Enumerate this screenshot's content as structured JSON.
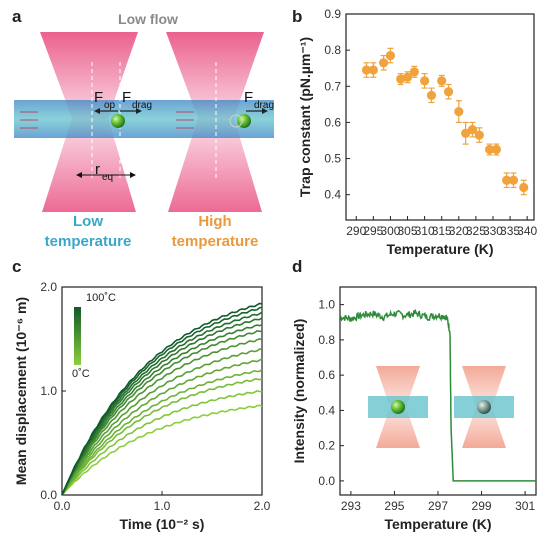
{
  "panel_a": {
    "letter": "a",
    "title": "Low flow",
    "force_op": "F",
    "force_op_sub": "op",
    "force_drag": "F",
    "force_drag_sub": "drag",
    "force_drag_right": "F",
    "force_drag_right_sub": "drag",
    "req": "r",
    "req_sub": "eq",
    "left_caption_1": "Low",
    "left_caption_2": "temperature",
    "right_caption_1": "High",
    "right_caption_2": "temperature",
    "colors": {
      "low": "#3aa6c8",
      "high": "#e89a3c",
      "beam": "#e8457a",
      "channel": "#4fb3c9",
      "bead": "#5dbb2e"
    }
  },
  "panel_b_letter": "b",
  "panel_c_letter": "c",
  "panel_d_letter": "d",
  "chart_data": [
    {
      "panel": "b",
      "type": "scatter",
      "xlabel": "Temperature (K)",
      "ylabel": "Trap constant (pN.µm⁻¹)",
      "xlim": [
        287,
        342
      ],
      "ylim": [
        0.33,
        0.9
      ],
      "xticks": [
        "290",
        "295",
        "300",
        "305",
        "310",
        "315",
        "320",
        "325",
        "330",
        "335",
        "340"
      ],
      "yticks": [
        "0.4",
        "0.5",
        "0.6",
        "0.7",
        "0.8",
        "0.9"
      ],
      "color": "#f0a23c",
      "series": [
        {
          "x": [
            293,
            295,
            298,
            300,
            303,
            305,
            307,
            310,
            312,
            315,
            317,
            320,
            322,
            324,
            326,
            329,
            331,
            334,
            336,
            339
          ],
          "y": [
            0.745,
            0.745,
            0.765,
            0.785,
            0.72,
            0.725,
            0.74,
            0.715,
            0.675,
            0.715,
            0.685,
            0.63,
            0.57,
            0.58,
            0.565,
            0.525,
            0.525,
            0.44,
            0.44,
            0.42
          ],
          "err": [
            0.02,
            0.02,
            0.02,
            0.02,
            0.015,
            0.015,
            0.015,
            0.02,
            0.02,
            0.015,
            0.02,
            0.03,
            0.03,
            0.02,
            0.02,
            0.015,
            0.015,
            0.02,
            0.02,
            0.02
          ]
        }
      ]
    },
    {
      "panel": "c",
      "type": "line",
      "xlabel": "Time (10⁻² s)",
      "ylabel": "Mean displacement (10⁻⁶ m)",
      "xlim": [
        0,
        2.0
      ],
      "ylim": [
        0,
        2.0
      ],
      "xticks": [
        "0.0",
        "1.0",
        "2.0"
      ],
      "yticks": [
        "0.0",
        "1.0",
        "2.0"
      ],
      "colorbar_top": "100˚C",
      "colorbar_bottom": "0˚C",
      "color_low": "#8ccf3c",
      "color_high": "#0e5a2a",
      "series": [
        {
          "end": 0.86
        },
        {
          "end": 1.0
        },
        {
          "end": 1.12
        },
        {
          "end": 1.2
        },
        {
          "end": 1.3
        },
        {
          "end": 1.4
        },
        {
          "end": 1.5
        },
        {
          "end": 1.58
        },
        {
          "end": 1.64
        },
        {
          "end": 1.7
        },
        {
          "end": 1.75
        },
        {
          "end": 1.8
        },
        {
          "end": 1.84
        }
      ]
    },
    {
      "panel": "d",
      "type": "line",
      "xlabel": "Temperature (K)",
      "ylabel": "Intensity (normalized)",
      "xlim": [
        292.5,
        301.5
      ],
      "ylim": [
        -0.08,
        1.1
      ],
      "xticks": [
        "293",
        "295",
        "297",
        "299",
        "301"
      ],
      "yticks": [
        "0.0",
        "0.2",
        "0.4",
        "0.6",
        "0.8",
        "1.0"
      ],
      "color": "#2e8b3a",
      "series": [
        {
          "x": [
            292.5,
            293.0,
            293.5,
            294.0,
            294.5,
            295.0,
            295.5,
            296.0,
            296.5,
            297.0,
            297.4,
            297.55,
            297.6,
            297.7,
            298.0,
            299.0,
            300.0,
            301.5
          ],
          "y": [
            0.93,
            0.92,
            0.94,
            0.95,
            0.93,
            0.95,
            0.94,
            0.95,
            0.93,
            0.94,
            0.93,
            0.85,
            0.3,
            0.0,
            0.0,
            0.0,
            0.0,
            0.0
          ]
        }
      ]
    }
  ]
}
